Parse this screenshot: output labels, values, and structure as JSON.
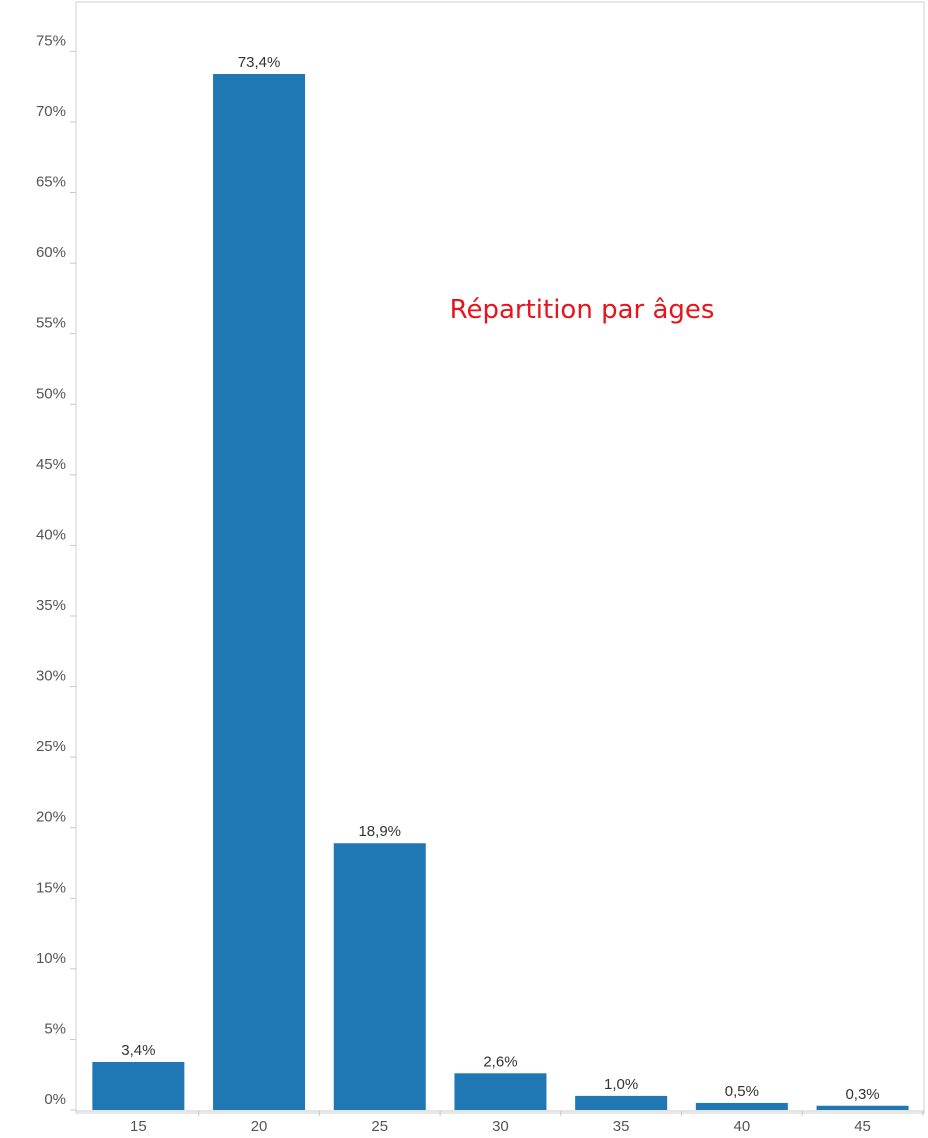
{
  "chart_data": {
    "type": "bar",
    "categories": [
      "15",
      "20",
      "25",
      "30",
      "35",
      "40",
      "45"
    ],
    "values": [
      3.4,
      73.4,
      18.9,
      2.6,
      1.0,
      0.5,
      0.3
    ],
    "data_labels": [
      "3,4%",
      "73,4%",
      "18,9%",
      "2,6%",
      "1,0%",
      "0,5%",
      "0,3%"
    ],
    "y_ticks": [
      0,
      5,
      10,
      15,
      20,
      25,
      30,
      35,
      40,
      45,
      50,
      55,
      60,
      65,
      70,
      75
    ],
    "y_tick_labels": [
      "0%",
      "5%",
      "10%",
      "15%",
      "20%",
      "25%",
      "30%",
      "35%",
      "40%",
      "45%",
      "50%",
      "55%",
      "60%",
      "65%",
      "70%",
      "75%"
    ],
    "ylim": [
      0,
      78.5
    ],
    "grid": false,
    "annotation": "Répartition par âges",
    "colors": {
      "bar": "#1f77b4",
      "annotation": "#e8141c",
      "axis": "#c8c8c8",
      "frame": "#d0d0d0"
    }
  }
}
